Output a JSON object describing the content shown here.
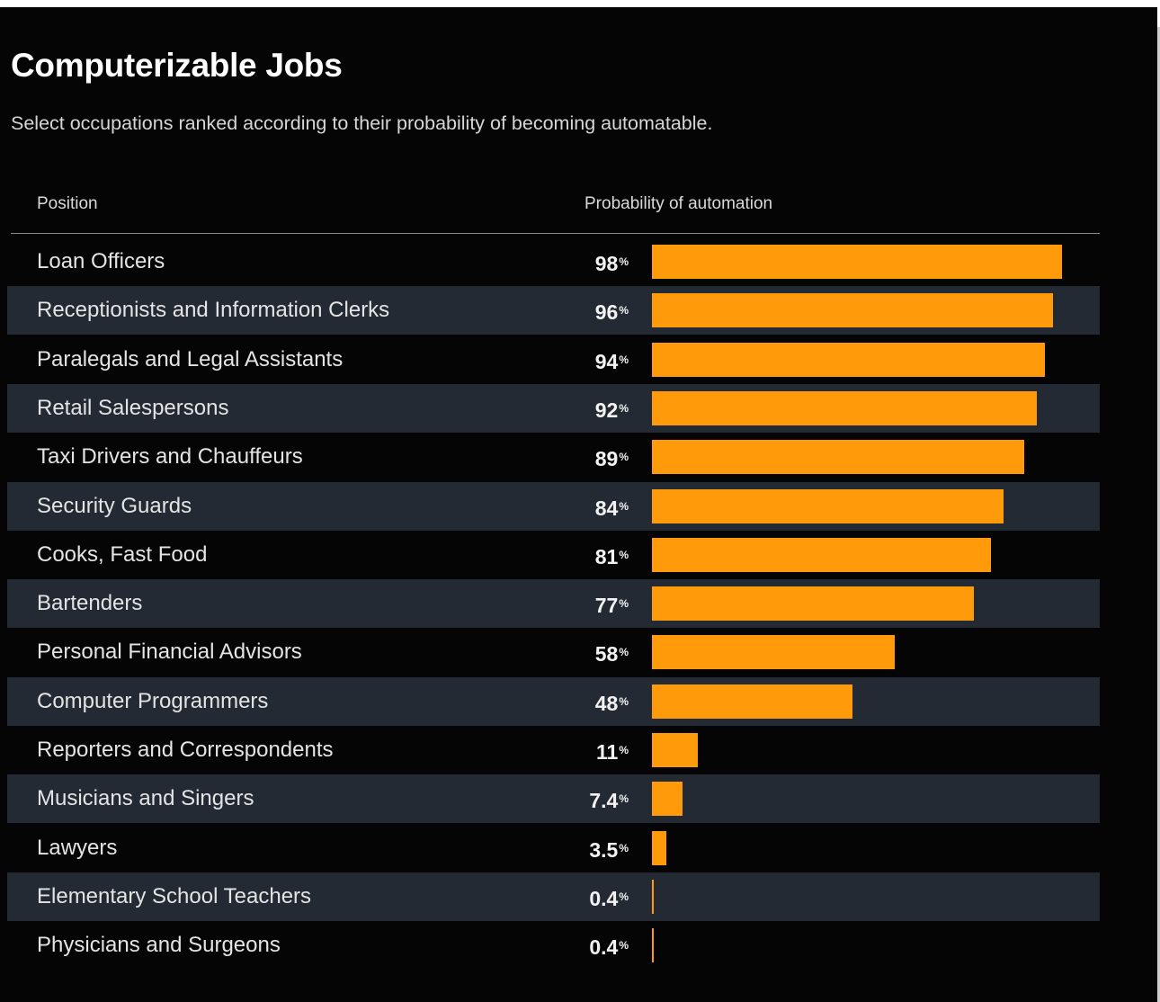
{
  "title": "Computerizable Jobs",
  "subtitle": "Select occupations ranked according to their probability of becoming automatable.",
  "columns": {
    "position": "Position",
    "probability": "Probability of automation"
  },
  "colors": {
    "background": "#050505",
    "alt_row": "#232a33",
    "bar": "#ff9b0a",
    "text": "#e4e4e4"
  },
  "chart_data": {
    "type": "bar",
    "orientation": "horizontal",
    "title": "Computerizable Jobs",
    "subtitle": "Select occupations ranked according to their probability of becoming automatable.",
    "xlabel": "Probability of automation",
    "ylabel": "Position",
    "unit": "%",
    "xlim": [
      0,
      100
    ],
    "grid": false,
    "categories": [
      "Loan Officers",
      "Receptionists and Information Clerks",
      "Paralegals and Legal Assistants",
      "Retail Salespersons",
      "Taxi Drivers and Chauffeurs",
      "Security Guards",
      "Cooks, Fast Food",
      "Bartenders",
      "Personal Financial Advisors",
      "Computer Programmers",
      "Reporters and Correspondents",
      "Musicians and Singers",
      "Lawyers",
      "Elementary School Teachers",
      "Physicians and Surgeons"
    ],
    "values": [
      98,
      96,
      94,
      92,
      89,
      84,
      81,
      77,
      58,
      48,
      11,
      7.4,
      3.5,
      0.4,
      0.4
    ],
    "value_labels": [
      "98",
      "96",
      "94",
      "92",
      "89",
      "84",
      "81",
      "77",
      "58",
      "48",
      "11",
      "7.4",
      "3.5",
      "0.4",
      "0.4"
    ]
  }
}
